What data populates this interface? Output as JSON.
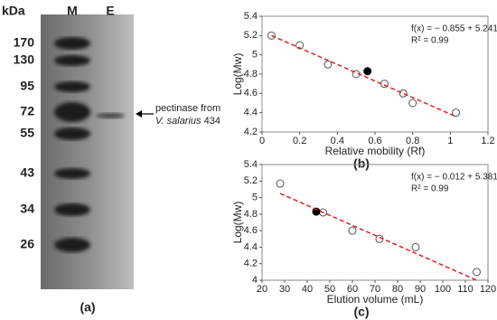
{
  "gel": {
    "unit_label": "kDa",
    "lanes": [
      "M",
      "E"
    ],
    "markers": [
      170,
      130,
      95,
      72,
      55,
      43,
      34,
      26
    ],
    "annotation": [
      "pectinase from",
      "V. salarius",
      "434"
    ],
    "panel_label": "(a)"
  },
  "chart_data": [
    {
      "type": "scatter",
      "panel_label": "(b)",
      "xlabel": "Relative mobility (Rf)",
      "ylabel": "Log(Mw)",
      "equation": "f(x) = − 0.855 + 5.241",
      "r2": "R² = 0.99",
      "xlim": [
        0,
        1.2
      ],
      "xticks": [
        0,
        0.2,
        0.4,
        0.6,
        0.8,
        1,
        1.2
      ],
      "ylim": [
        4.2,
        5.4
      ],
      "yticks": [
        4.2,
        4.4,
        4.6,
        4.8,
        5,
        5.2,
        5.4
      ],
      "series": [
        {
          "type": "scatter",
          "marker": "open",
          "color": "#555555",
          "x": [
            0.05,
            0.2,
            0.35,
            0.5,
            0.65,
            0.75,
            0.8,
            1.03
          ],
          "values": [
            5.2,
            5.1,
            4.9,
            4.8,
            4.7,
            4.6,
            4.5,
            4.4
          ]
        },
        {
          "type": "scatter",
          "marker": "filled",
          "color": "#000000",
          "x": [
            0.56
          ],
          "values": [
            4.83
          ]
        },
        {
          "type": "line",
          "style": "dashed",
          "color": "#e02020",
          "x": [
            0.05,
            1.03
          ],
          "values": [
            5.2,
            4.36
          ]
        }
      ]
    },
    {
      "type": "scatter",
      "panel_label": "(c)",
      "xlabel": "Elution volume (mL)",
      "ylabel": "Log(Mw)",
      "equation": "f(x) = − 0.012 + 5.381",
      "r2": "R² = 0.99",
      "xlim": [
        20,
        120
      ],
      "xticks": [
        20,
        30,
        40,
        50,
        60,
        70,
        80,
        90,
        100,
        110,
        120
      ],
      "ylim": [
        4,
        5.4
      ],
      "yticks": [
        4,
        4.2,
        4.4,
        4.6,
        4.8,
        5,
        5.2,
        5.4
      ],
      "series": [
        {
          "type": "scatter",
          "marker": "open",
          "color": "#555555",
          "x": [
            28,
            47,
            60,
            72,
            88,
            115
          ],
          "values": [
            5.17,
            4.82,
            4.6,
            4.5,
            4.4,
            4.1
          ]
        },
        {
          "type": "scatter",
          "marker": "filled",
          "color": "#000000",
          "x": [
            44
          ],
          "values": [
            4.83
          ]
        },
        {
          "type": "line",
          "style": "dashed",
          "color": "#e02020",
          "x": [
            28,
            115
          ],
          "values": [
            5.05,
            4.0
          ]
        }
      ]
    }
  ]
}
